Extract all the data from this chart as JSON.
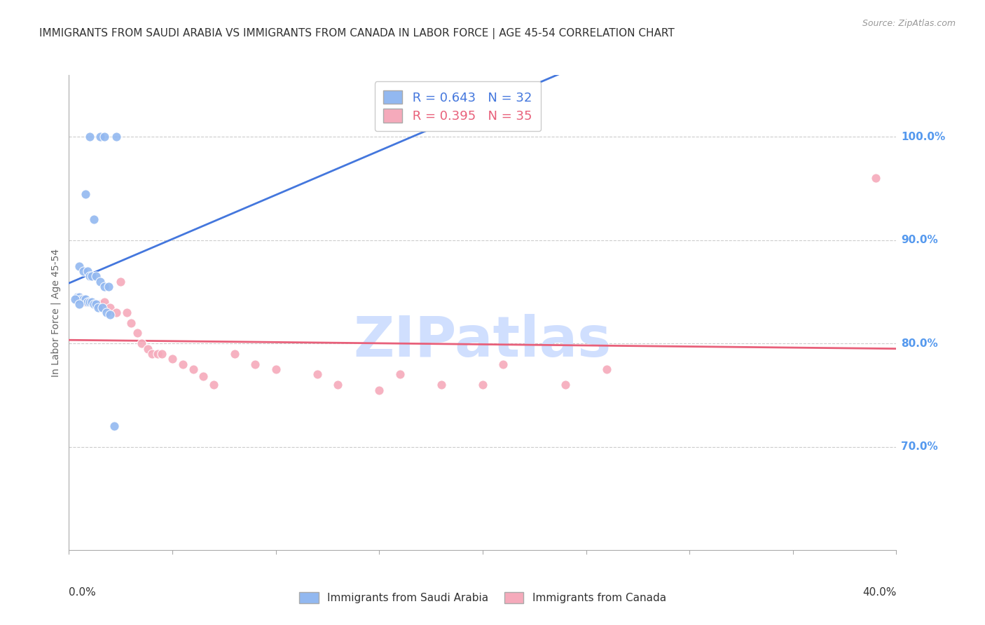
{
  "title": "IMMIGRANTS FROM SAUDI ARABIA VS IMMIGRANTS FROM CANADA IN LABOR FORCE | AGE 45-54 CORRELATION CHART",
  "source": "Source: ZipAtlas.com",
  "ylabel": "In Labor Force | Age 45-54",
  "legend_blue_r": "R = 0.643",
  "legend_blue_n": "N = 32",
  "legend_pink_r": "R = 0.395",
  "legend_pink_n": "N = 35",
  "blue_color": "#92B8F0",
  "pink_color": "#F5AABB",
  "blue_line_color": "#4477DD",
  "pink_line_color": "#E8607A",
  "watermark_text": "ZIPatlas",
  "watermark_color": "#D0DFFE",
  "blue_dots_x": [
    0.01,
    0.015,
    0.017,
    0.023,
    0.008,
    0.012,
    0.005,
    0.007,
    0.009,
    0.01,
    0.011,
    0.013,
    0.015,
    0.017,
    0.019,
    0.004,
    0.005,
    0.006,
    0.007,
    0.008,
    0.009,
    0.01,
    0.011,
    0.012,
    0.013,
    0.014,
    0.016,
    0.018,
    0.02,
    0.003,
    0.005,
    0.022
  ],
  "blue_dots_y": [
    1.0,
    1.0,
    1.0,
    1.0,
    0.945,
    0.92,
    0.875,
    0.87,
    0.87,
    0.865,
    0.865,
    0.865,
    0.86,
    0.855,
    0.855,
    0.845,
    0.845,
    0.843,
    0.843,
    0.843,
    0.84,
    0.84,
    0.84,
    0.838,
    0.838,
    0.835,
    0.835,
    0.83,
    0.828,
    0.843,
    0.838,
    0.72
  ],
  "pink_dots_x": [
    0.005,
    0.008,
    0.01,
    0.013,
    0.015,
    0.017,
    0.02,
    0.023,
    0.025,
    0.028,
    0.03,
    0.033,
    0.035,
    0.038,
    0.04,
    0.043,
    0.045,
    0.05,
    0.055,
    0.06,
    0.065,
    0.07,
    0.08,
    0.09,
    0.1,
    0.12,
    0.13,
    0.15,
    0.16,
    0.18,
    0.2,
    0.21,
    0.24,
    0.26,
    0.39
  ],
  "pink_dots_y": [
    0.845,
    0.84,
    0.84,
    0.838,
    0.838,
    0.84,
    0.835,
    0.83,
    0.86,
    0.83,
    0.82,
    0.81,
    0.8,
    0.795,
    0.79,
    0.79,
    0.79,
    0.785,
    0.78,
    0.775,
    0.768,
    0.76,
    0.79,
    0.78,
    0.775,
    0.77,
    0.76,
    0.755,
    0.77,
    0.76,
    0.76,
    0.78,
    0.76,
    0.775,
    0.96
  ],
  "xlim": [
    0.0,
    0.4
  ],
  "ylim": [
    0.6,
    1.06
  ],
  "ytick_positions": [
    0.7,
    0.8,
    0.9,
    1.0
  ],
  "ytick_labels": [
    "70.0%",
    "80.0%",
    "90.0%",
    "100.0%"
  ],
  "xtick_positions": [
    0.0,
    0.05,
    0.1,
    0.15,
    0.2,
    0.25,
    0.3,
    0.35,
    0.4
  ],
  "grid_color": "#CCCCCC",
  "title_color": "#333333",
  "right_axis_color": "#5599EE",
  "bottom_label_color": "#333333",
  "legend_frame_color": "#CCCCCC"
}
